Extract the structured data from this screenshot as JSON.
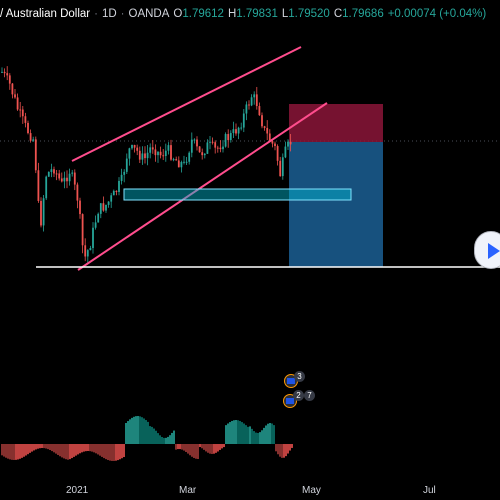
{
  "header": {
    "symbol": "/ Australian Dollar",
    "interval": "1D",
    "broker": "OANDA",
    "open_key": "O",
    "open": "1.79612",
    "high_key": "H",
    "high": "1.79831",
    "low_key": "L",
    "low": "1.79520",
    "close_key": "C",
    "close": "1.79686",
    "change": "+0.00074 (+0.04%)"
  },
  "x_axis": {
    "labels": [
      "2021",
      "Mar",
      "May",
      "Jul"
    ]
  },
  "events": {
    "top_count": "3",
    "bottom_count_a": "2",
    "bottom_count_b": "7"
  },
  "colors": {
    "background": "#000000",
    "candle_up": "#26a69a",
    "candle_down": "#ef5350",
    "channel_line": "#ff4d8d",
    "support_line": "#ffffff",
    "zone_box": "#00bcd4",
    "stop_zone": "#8b1538",
    "target_zone": "#1a5a8c",
    "accent": "#2962ff"
  },
  "icons": {
    "play": "play-icon",
    "flag": "flag-icon"
  }
}
